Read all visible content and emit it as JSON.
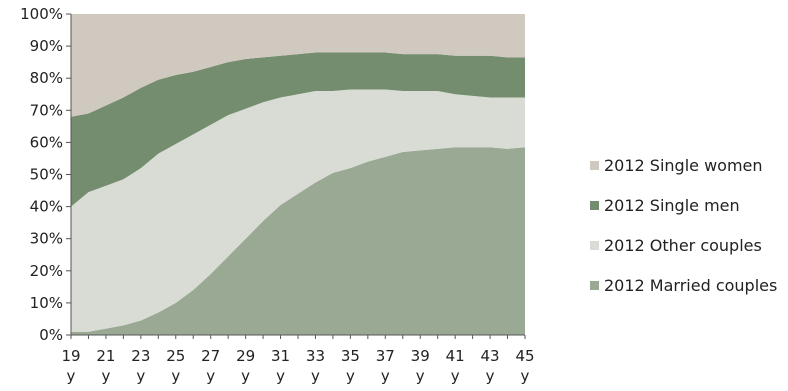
{
  "chart_data": {
    "type": "area",
    "stacked": true,
    "x": [
      "19 y",
      "20 y",
      "21 y",
      "22 y",
      "23 y",
      "24 y",
      "25 y",
      "26 y",
      "27 y",
      "28 y",
      "29 y",
      "30 y",
      "31 y",
      "32 y",
      "33 y",
      "34 y",
      "35 y",
      "36 y",
      "37 y",
      "38 y",
      "39 y",
      "40 y",
      "41 y",
      "42 y",
      "43 y",
      "44 y",
      "45 y"
    ],
    "x_tick_labels": [
      {
        "num": "19",
        "unit": "y"
      },
      {
        "num": "21",
        "unit": "y"
      },
      {
        "num": "23",
        "unit": "y"
      },
      {
        "num": "25",
        "unit": "y"
      },
      {
        "num": "27",
        "unit": "y"
      },
      {
        "num": "29",
        "unit": "y"
      },
      {
        "num": "31",
        "unit": "y"
      },
      {
        "num": "33",
        "unit": "y"
      },
      {
        "num": "35",
        "unit": "y"
      },
      {
        "num": "37",
        "unit": "y"
      },
      {
        "num": "39",
        "unit": "y"
      },
      {
        "num": "41",
        "unit": "y"
      },
      {
        "num": "43",
        "unit": "y"
      },
      {
        "num": "45",
        "unit": "y"
      }
    ],
    "y_ticks": [
      "0%",
      "10%",
      "20%",
      "30%",
      "40%",
      "50%",
      "60%",
      "70%",
      "80%",
      "90%",
      "100%"
    ],
    "ylim": [
      0,
      100
    ],
    "grid": false,
    "legend_position": "right",
    "series": [
      {
        "name": "2012 Married couples",
        "color": "#9aa994",
        "values": [
          1,
          1,
          2,
          3,
          4.5,
          7,
          10,
          14,
          19,
          24.5,
          30,
          35.5,
          40.5,
          44,
          47.5,
          50.5,
          52,
          54,
          55.5,
          57,
          57.5,
          58,
          58.5,
          58.5,
          58.5,
          58,
          58.5
        ]
      },
      {
        "name": "2012 Other couples",
        "color": "#d9dcd4",
        "values": [
          39,
          43.5,
          44.5,
          45.5,
          47.5,
          49.5,
          49.5,
          48.5,
          46.5,
          44,
          40.5,
          37,
          33.5,
          31,
          28.5,
          25.5,
          24.5,
          22.5,
          21,
          19,
          18.5,
          18,
          16.5,
          16,
          15.5,
          16,
          15.5
        ]
      },
      {
        "name": "2012 Single men",
        "color": "#738d6e",
        "values": [
          28,
          24.5,
          25,
          25.5,
          25,
          23,
          21.5,
          19.5,
          18,
          16.5,
          15.5,
          14,
          13,
          12.5,
          12,
          12,
          11.5,
          11.5,
          11.5,
          11.5,
          11.5,
          11.5,
          12,
          12.5,
          13,
          12.5,
          12.5
        ]
      },
      {
        "name": "2012 Single women",
        "color": "#d0c9bf",
        "values": [
          32,
          31,
          28.5,
          26,
          23,
          20.5,
          19,
          18,
          16.5,
          15,
          14,
          13.5,
          13,
          12.5,
          12,
          12,
          12,
          12,
          12,
          12.5,
          12.5,
          12.5,
          13,
          13,
          13,
          13.5,
          13.5
        ]
      }
    ]
  }
}
